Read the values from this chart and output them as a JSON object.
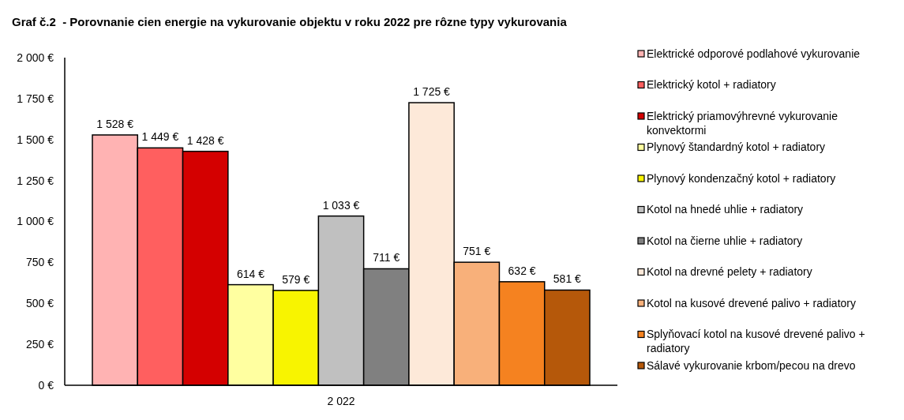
{
  "chart_data": {
    "type": "bar",
    "title": "Graf č.2  - Porovnanie cien energie na vykurovanie objektu v roku 2022 pre rôzne typy vykurovania",
    "categories": [
      "2 022"
    ],
    "series": [
      {
        "name": "Elektrické odporové podlahové vykurovanie",
        "color": "#ffb3b3",
        "values": [
          1528
        ],
        "value_labels": [
          "1 528 €"
        ]
      },
      {
        "name": "Elektrický kotol + radiatory",
        "color": "#ff5f5f",
        "values": [
          1449
        ],
        "value_labels": [
          "1 449 €"
        ]
      },
      {
        "name": "Elektrický priamovýhrevné vykurovanie konvektormi",
        "color": "#d40000",
        "values": [
          1428
        ],
        "value_labels": [
          "1 428 €"
        ]
      },
      {
        "name": "Plynový štandardný kotol + radiatory",
        "color": "#ffffa0",
        "values": [
          614
        ],
        "value_labels": [
          "614 €"
        ]
      },
      {
        "name": "Plynový kondenzačný kotol + radiatory",
        "color": "#f8f400",
        "values": [
          579
        ],
        "value_labels": [
          "579 €"
        ]
      },
      {
        "name": "Kotol na hnedé uhlie + radiatory",
        "color": "#c0c0c0",
        "values": [
          1033
        ],
        "value_labels": [
          "1 033 €"
        ]
      },
      {
        "name": "Kotol na čierne uhlie + radiatory",
        "color": "#808080",
        "values": [
          711
        ],
        "value_labels": [
          "711 €"
        ]
      },
      {
        "name": "Kotol na drevné pelety + radiatory",
        "color": "#fde9d9",
        "values": [
          1725
        ],
        "value_labels": [
          "1 725 €"
        ]
      },
      {
        "name": "Kotol na kusové drevené palivo + radiatory",
        "color": "#f8b07a",
        "values": [
          751
        ],
        "value_labels": [
          "751 €"
        ]
      },
      {
        "name": "Splyňovací kotol na kusové drevené palivo + radiatory",
        "color": "#f58220",
        "values": [
          632
        ],
        "value_labels": [
          "632 €"
        ]
      },
      {
        "name": "Sálavé vykurovanie krbom/pecou na drevo",
        "color": "#b5580a",
        "values": [
          581
        ],
        "value_labels": [
          "581 €"
        ]
      }
    ],
    "ylim": [
      0,
      2000
    ],
    "yticks": [
      {
        "value": 0,
        "label": "0 €"
      },
      {
        "value": 250,
        "label": "250 €"
      },
      {
        "value": 500,
        "label": "500 €"
      },
      {
        "value": 750,
        "label": "750 €"
      },
      {
        "value": 1000,
        "label": "1 000 €"
      },
      {
        "value": 1250,
        "label": "1 250 €"
      },
      {
        "value": 1500,
        "label": "1 500 €"
      },
      {
        "value": 1750,
        "label": "1 750 €"
      },
      {
        "value": 2000,
        "label": "2 000 €"
      }
    ],
    "legend": "right"
  }
}
